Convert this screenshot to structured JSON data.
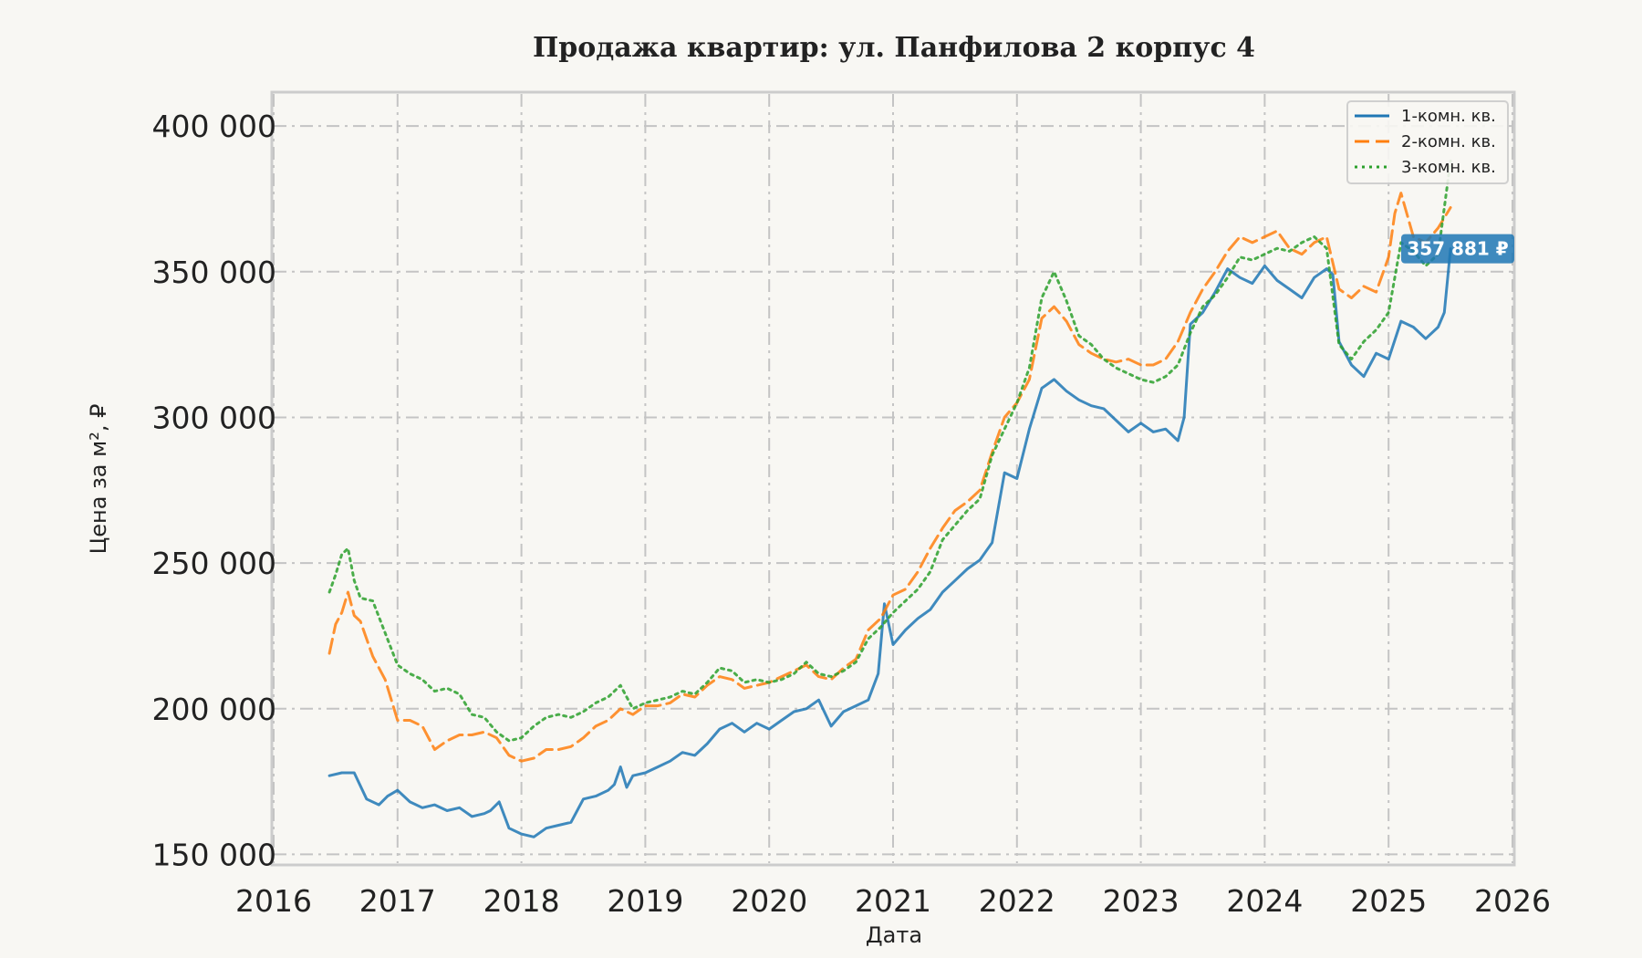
{
  "chart_data": {
    "type": "line",
    "title": "Продажа квартир: ул. Панфилова 2 корпус 4",
    "xlabel": "Дата",
    "ylabel": "Цена за м², ₽",
    "xlim": [
      2016,
      2026
    ],
    "ylim": [
      147000,
      411000
    ],
    "x_ticks": [
      "2016",
      "2017",
      "2018",
      "2019",
      "2020",
      "2021",
      "2022",
      "2023",
      "2024",
      "2025",
      "2026"
    ],
    "y_ticks": [
      {
        "value": 150000,
        "label": "150 000"
      },
      {
        "value": 200000,
        "label": "200 000"
      },
      {
        "value": 250000,
        "label": "250 000"
      },
      {
        "value": 300000,
        "label": "300 000"
      },
      {
        "value": 350000,
        "label": "350 000"
      },
      {
        "value": 400000,
        "label": "400 000"
      }
    ],
    "grid": true,
    "legend_position": "top-right",
    "badges": [
      {
        "series": 0,
        "label": "357 881 ₽",
        "value": 357881
      }
    ],
    "series": [
      {
        "name": "1-комн. кв.",
        "color": "#1f77b4",
        "style": "solid",
        "x": [
          "2016.45",
          "2016.55",
          "2016.65",
          "2016.75",
          "2016.85",
          "2016.92",
          "2017.0",
          "2017.1",
          "2017.2",
          "2017.3",
          "2017.4",
          "2017.5",
          "2017.6",
          "2017.7",
          "2017.75",
          "2017.82",
          "2017.9",
          "2018.0",
          "2018.1",
          "2018.2",
          "2018.3",
          "2018.4",
          "2018.5",
          "2018.6",
          "2018.7",
          "2018.75",
          "2018.8",
          "2018.85",
          "2018.9",
          "2019.0",
          "2019.1",
          "2019.2",
          "2019.3",
          "2019.4",
          "2019.5",
          "2019.6",
          "2019.7",
          "2019.8",
          "2019.9",
          "2020.0",
          "2020.1",
          "2020.2",
          "2020.3",
          "2020.4",
          "2020.5",
          "2020.6",
          "2020.7",
          "2020.8",
          "2020.88",
          "2020.93",
          "2021.0",
          "2021.1",
          "2021.2",
          "2021.3",
          "2021.4",
          "2021.5",
          "2021.6",
          "2021.7",
          "2021.75",
          "2021.8",
          "2021.9",
          "2022.0",
          "2022.1",
          "2022.2",
          "2022.3",
          "2022.4",
          "2022.5",
          "2022.6",
          "2022.7",
          "2022.8",
          "2022.9",
          "2023.0",
          "2023.1",
          "2023.2",
          "2023.3",
          "2023.35",
          "2023.4",
          "2023.5",
          "2023.6",
          "2023.7",
          "2023.8",
          "2023.9",
          "2024.0",
          "2024.1",
          "2024.2",
          "2024.3",
          "2024.4",
          "2024.5",
          "2024.55",
          "2024.6",
          "2024.7",
          "2024.8",
          "2024.9",
          "2025.0",
          "2025.1",
          "2025.2",
          "2025.3",
          "2025.4",
          "2025.45",
          "2025.5"
        ],
        "y": [
          177000,
          178000,
          178000,
          169000,
          167000,
          170000,
          172000,
          168000,
          166000,
          167000,
          165000,
          166000,
          163000,
          164000,
          165000,
          168000,
          159000,
          157000,
          156000,
          159000,
          160000,
          161000,
          169000,
          170000,
          172000,
          174000,
          180000,
          173000,
          177000,
          178000,
          180000,
          182000,
          185000,
          184000,
          188000,
          193000,
          195000,
          192000,
          195000,
          193000,
          196000,
          199000,
          200000,
          203000,
          194000,
          199000,
          201000,
          203000,
          212000,
          236000,
          222000,
          227000,
          231000,
          234000,
          240000,
          244000,
          248000,
          251000,
          254000,
          257000,
          281000,
          279000,
          296000,
          310000,
          313000,
          309000,
          306000,
          304000,
          303000,
          299000,
          295000,
          298000,
          295000,
          296000,
          292000,
          300000,
          332000,
          336000,
          343000,
          351000,
          348000,
          346000,
          352000,
          347000,
          344000,
          341000,
          348000,
          351000,
          349000,
          326000,
          318000,
          314000,
          322000,
          320000,
          333000,
          331000,
          327000,
          331000,
          336000,
          357881
        ]
      },
      {
        "name": "2-комн. кв.",
        "color": "#ff7f0e",
        "style": "dashed",
        "x": [
          "2016.45",
          "2016.5",
          "2016.55",
          "2016.6",
          "2016.65",
          "2016.7",
          "2016.8",
          "2016.9",
          "2017.0",
          "2017.1",
          "2017.2",
          "2017.3",
          "2017.4",
          "2017.5",
          "2017.6",
          "2017.7",
          "2017.8",
          "2017.9",
          "2018.0",
          "2018.1",
          "2018.2",
          "2018.3",
          "2018.4",
          "2018.5",
          "2018.6",
          "2018.7",
          "2018.8",
          "2018.9",
          "2019.0",
          "2019.1",
          "2019.2",
          "2019.3",
          "2019.4",
          "2019.5",
          "2019.6",
          "2019.7",
          "2019.8",
          "2019.9",
          "2020.0",
          "2020.1",
          "2020.2",
          "2020.3",
          "2020.4",
          "2020.5",
          "2020.6",
          "2020.7",
          "2020.8",
          "2020.9",
          "2021.0",
          "2021.1",
          "2021.2",
          "2021.3",
          "2021.4",
          "2021.5",
          "2021.6",
          "2021.7",
          "2021.8",
          "2021.9",
          "2022.0",
          "2022.1",
          "2022.2",
          "2022.3",
          "2022.4",
          "2022.5",
          "2022.6",
          "2022.7",
          "2022.8",
          "2022.9",
          "2023.0",
          "2023.1",
          "2023.2",
          "2023.3",
          "2023.4",
          "2023.5",
          "2023.6",
          "2023.7",
          "2023.8",
          "2023.9",
          "2024.0",
          "2024.1",
          "2024.2",
          "2024.3",
          "2024.4",
          "2024.5",
          "2024.6",
          "2024.7",
          "2024.8",
          "2024.9",
          "2025.0",
          "2025.05",
          "2025.1",
          "2025.2",
          "2025.3",
          "2025.4",
          "2025.5"
        ],
        "y": [
          219000,
          229000,
          233000,
          240000,
          232000,
          230000,
          218000,
          210000,
          196000,
          196000,
          194000,
          186000,
          189000,
          191000,
          191000,
          192000,
          190000,
          184000,
          182000,
          183000,
          186000,
          186000,
          187000,
          190000,
          194000,
          196000,
          200000,
          198000,
          201000,
          201000,
          202000,
          205000,
          204000,
          208000,
          211000,
          210000,
          207000,
          208000,
          209000,
          211000,
          213000,
          215000,
          211000,
          210000,
          214000,
          217000,
          227000,
          231000,
          239000,
          241000,
          247000,
          255000,
          262000,
          268000,
          271000,
          275000,
          288000,
          300000,
          305000,
          313000,
          334000,
          338000,
          333000,
          325000,
          322000,
          320000,
          319000,
          320000,
          318000,
          318000,
          320000,
          326000,
          336000,
          344000,
          350000,
          357000,
          362000,
          360000,
          362000,
          364000,
          358000,
          356000,
          360000,
          362000,
          344000,
          341000,
          345000,
          343000,
          355000,
          370000,
          377000,
          362000,
          360000,
          365000,
          372000
        ]
      },
      {
        "name": "3-комн. кв.",
        "color": "#2ca02c",
        "style": "dotted",
        "x": [
          "2016.45",
          "2016.5",
          "2016.55",
          "2016.6",
          "2016.65",
          "2016.7",
          "2016.8",
          "2016.9",
          "2017.0",
          "2017.1",
          "2017.2",
          "2017.3",
          "2017.4",
          "2017.5",
          "2017.6",
          "2017.7",
          "2017.8",
          "2017.9",
          "2018.0",
          "2018.1",
          "2018.2",
          "2018.3",
          "2018.4",
          "2018.5",
          "2018.6",
          "2018.7",
          "2018.8",
          "2018.9",
          "2019.0",
          "2019.1",
          "2019.2",
          "2019.3",
          "2019.4",
          "2019.5",
          "2019.6",
          "2019.7",
          "2019.8",
          "2019.9",
          "2020.0",
          "2020.1",
          "2020.2",
          "2020.3",
          "2020.4",
          "2020.5",
          "2020.6",
          "2020.7",
          "2020.8",
          "2020.9",
          "2021.0",
          "2021.1",
          "2021.2",
          "2021.3",
          "2021.4",
          "2021.5",
          "2021.6",
          "2021.7",
          "2021.8",
          "2021.9",
          "2022.0",
          "2022.1",
          "2022.2",
          "2022.3",
          "2022.4",
          "2022.5",
          "2022.6",
          "2022.7",
          "2022.8",
          "2022.9",
          "2023.0",
          "2023.1",
          "2023.2",
          "2023.3",
          "2023.4",
          "2023.5",
          "2023.6",
          "2023.7",
          "2023.8",
          "2023.9",
          "2024.0",
          "2024.1",
          "2024.2",
          "2024.3",
          "2024.4",
          "2024.5",
          "2024.6",
          "2024.7",
          "2024.8",
          "2024.9",
          "2025.0",
          "2025.05",
          "2025.1",
          "2025.2",
          "2025.3",
          "2025.4",
          "2025.5"
        ],
        "y": [
          240000,
          246000,
          253000,
          255000,
          244000,
          238000,
          237000,
          226000,
          215000,
          212000,
          210000,
          206000,
          207000,
          205000,
          198000,
          197000,
          192000,
          189000,
          190000,
          194000,
          197000,
          198000,
          197000,
          199000,
          202000,
          204000,
          208000,
          200000,
          202000,
          203000,
          204000,
          206000,
          205000,
          209000,
          214000,
          213000,
          209000,
          210000,
          209000,
          210000,
          212000,
          216000,
          212000,
          211000,
          213000,
          216000,
          224000,
          228000,
          233000,
          237000,
          241000,
          247000,
          258000,
          263000,
          268000,
          272000,
          287000,
          296000,
          305000,
          317000,
          341000,
          350000,
          340000,
          328000,
          325000,
          320000,
          317000,
          315000,
          313000,
          312000,
          314000,
          318000,
          329000,
          338000,
          342000,
          348000,
          355000,
          354000,
          356000,
          358000,
          357000,
          360000,
          362000,
          358000,
          325000,
          320000,
          326000,
          330000,
          336000,
          348000,
          360000,
          357000,
          352000,
          356000,
          388000
        ]
      }
    ]
  }
}
